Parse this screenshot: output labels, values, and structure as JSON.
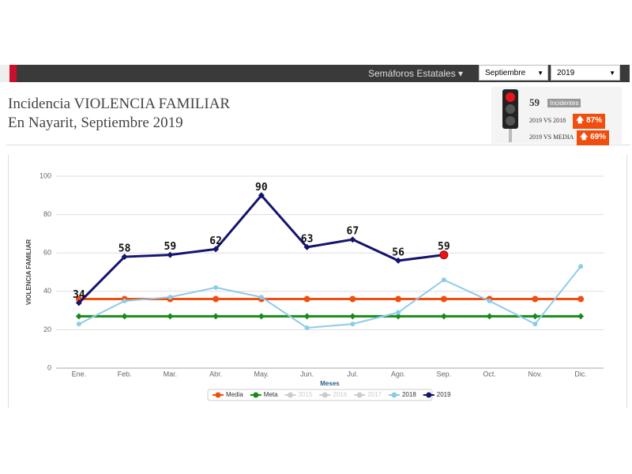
{
  "nav": {
    "menu": "Semáforos Estatales",
    "month": "Septiembre",
    "year": "2019"
  },
  "header": {
    "title_prefix": "Incidencia",
    "title_topic": "VIOLENCIA FAMILIAR",
    "subtitle": "En Nayarit, Septiembre 2019"
  },
  "indicator": {
    "count": "59",
    "count_label": "Incidentes",
    "comparisons": [
      {
        "label": "2019 VS 2018",
        "value": "87%"
      },
      {
        "label": "2019 VS MEDIA",
        "value": "69%"
      }
    ]
  },
  "chart_data": {
    "type": "line",
    "x_label": "Meses",
    "y_label": "VIOLENCIA FAMILIAR",
    "categories": [
      "Ene.",
      "Feb.",
      "Mar.",
      "Abr.",
      "May.",
      "Jun.",
      "Jul.",
      "Ago.",
      "Sep.",
      "Oct.",
      "Nov.",
      "Dic."
    ],
    "ylim": [
      0,
      100
    ],
    "yticks": [
      0,
      20,
      40,
      60,
      80,
      100
    ],
    "grid": true,
    "series": [
      {
        "name": "Media",
        "color": "#f04e0f",
        "values": [
          36,
          36,
          36,
          36,
          36,
          36,
          36,
          36,
          36,
          36,
          36,
          36
        ]
      },
      {
        "name": "Meta",
        "color": "#188a18",
        "values": [
          27,
          27,
          27,
          27,
          27,
          27,
          27,
          27,
          27,
          27,
          27,
          27
        ]
      },
      {
        "name": "2018",
        "color": "#8ecbeb",
        "values": [
          23,
          35,
          37,
          42,
          37,
          21,
          23,
          29,
          46,
          35,
          23,
          53
        ]
      },
      {
        "name": "2019",
        "color": "#14146e",
        "values": [
          34,
          58,
          59,
          62,
          90,
          63,
          67,
          56,
          59,
          null,
          null,
          null
        ],
        "data_labels": true
      }
    ],
    "hidden_series": [
      "2015",
      "2016",
      "2017"
    ]
  }
}
